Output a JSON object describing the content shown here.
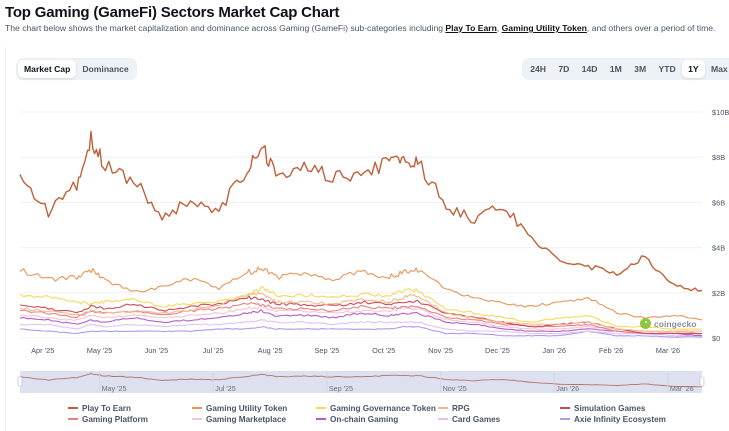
{
  "header": {
    "title": "Top Gaming (GameFi) Sectors Market Cap Chart",
    "desc_pre": "The chart below shows the market capitalization and dominance across Gaming (GameFi) sub-categories including ",
    "link1": "Play To Earn",
    "sep": ", ",
    "link2": "Gaming Utility Token",
    "desc_post": ", and others over a period of time."
  },
  "view_toggle": {
    "options": [
      "Market Cap",
      "Dominance"
    ],
    "active": "Market Cap"
  },
  "range_toggle": {
    "options": [
      "24H",
      "7D",
      "14D",
      "1M",
      "3M",
      "YTD",
      "1Y",
      "Max"
    ],
    "active": "1Y"
  },
  "watermark": "coingecko",
  "chart_data": {
    "type": "line",
    "title": "Top Gaming (GameFi) Sectors Market Cap Chart",
    "xlabel": "",
    "ylabel": "Market Cap (USD)",
    "ylim": [
      0,
      10
    ],
    "yunit": "B",
    "yticks": [
      "$0",
      "$2B",
      "$4B",
      "$6B",
      "$8B",
      "$10B"
    ],
    "ytick_values": [
      0,
      2,
      4,
      6,
      8,
      10
    ],
    "x_range": [
      "2025-03-20",
      "2026-03-20"
    ],
    "xtick_labels": [
      "Apr '25",
      "May '25",
      "Jun '25",
      "Jul '25",
      "Aug '25",
      "Sep '25",
      "Oct '25",
      "Nov '25",
      "Dec '25",
      "Jan '26",
      "Feb '26",
      "Mar '26"
    ],
    "xtick_months": [
      0.4,
      1.4,
      2.4,
      3.4,
      4.4,
      5.4,
      6.4,
      7.4,
      8.4,
      9.4,
      10.4,
      11.4
    ],
    "grid": true,
    "legend_position": "bottom",
    "navigator_ticks": [
      "May '25",
      "Jul '25",
      "Sep '25",
      "Nov '25",
      "Jan '26",
      "Mar '26"
    ],
    "navigator_tick_months": [
      1.4,
      3.4,
      5.4,
      7.4,
      9.4,
      11.4
    ],
    "sample_months": [
      0,
      0.5,
      1,
      1.25,
      1.5,
      2,
      2.5,
      3,
      3.5,
      4,
      4.25,
      4.5,
      5,
      5.5,
      6,
      6.5,
      6.75,
      7,
      7.5,
      8,
      8.5,
      9,
      9.5,
      10,
      10.5,
      11,
      11.5,
      12
    ],
    "series": [
      {
        "name": "Play To Earn",
        "color": "#c0603a",
        "values": [
          7.2,
          5.5,
          6.8,
          8.8,
          7.6,
          7.0,
          5.4,
          6.0,
          5.7,
          7.4,
          8.5,
          7.2,
          7.5,
          7.2,
          7.1,
          7.9,
          7.7,
          7.8,
          5.8,
          5.2,
          5.9,
          4.3,
          3.4,
          3.2,
          2.8,
          3.6,
          2.3,
          2.1
        ]
      },
      {
        "name": "Gaming Utility Token",
        "color": "#e8955a",
        "values": [
          3.0,
          2.6,
          2.7,
          3.0,
          2.6,
          2.0,
          2.3,
          2.6,
          2.2,
          2.9,
          3.1,
          2.7,
          2.8,
          2.6,
          2.9,
          2.7,
          2.9,
          3.0,
          2.1,
          1.8,
          1.5,
          1.4,
          1.6,
          1.8,
          1.1,
          0.9,
          1.0,
          0.8
        ]
      },
      {
        "name": "Gaming Governance Token",
        "color": "#f5d95c",
        "values": [
          1.9,
          1.8,
          1.6,
          1.5,
          1.6,
          1.7,
          1.4,
          1.5,
          1.6,
          1.9,
          2.2,
          1.9,
          1.9,
          1.8,
          1.9,
          1.9,
          2.1,
          2.1,
          1.3,
          1.1,
          0.9,
          0.7,
          0.9,
          1.0,
          0.5,
          0.5,
          0.4,
          0.4
        ]
      },
      {
        "name": "RPG",
        "color": "#f4b98a",
        "values": [
          1.3,
          1.2,
          1.0,
          1.2,
          1.1,
          1.2,
          1.1,
          1.2,
          1.5,
          1.9,
          2.0,
          1.6,
          1.6,
          1.5,
          1.7,
          1.6,
          1.8,
          1.9,
          1.1,
          0.9,
          0.7,
          0.6,
          0.6,
          0.7,
          0.4,
          0.3,
          0.3,
          0.3
        ]
      },
      {
        "name": "Simulation Games",
        "color": "#cc4a57",
        "values": [
          1.5,
          1.3,
          1.1,
          1.4,
          1.3,
          1.5,
          1.2,
          1.4,
          1.5,
          1.8,
          1.7,
          1.5,
          1.5,
          1.4,
          1.6,
          1.5,
          1.6,
          1.6,
          1.1,
          0.9,
          0.7,
          0.5,
          0.6,
          0.7,
          0.4,
          0.2,
          0.2,
          0.2
        ]
      },
      {
        "name": "Gaming Platform",
        "color": "#e88089",
        "values": [
          1.2,
          1.1,
          0.9,
          1.2,
          1.1,
          1.2,
          1.0,
          1.2,
          1.3,
          1.5,
          1.5,
          1.3,
          1.3,
          1.2,
          1.4,
          1.3,
          1.4,
          1.4,
          0.9,
          0.8,
          0.6,
          0.5,
          0.5,
          0.6,
          0.3,
          0.2,
          0.2,
          0.2
        ]
      },
      {
        "name": "Gaming Marketplace",
        "color": "#f5c6d0",
        "values": [
          1.0,
          0.9,
          0.8,
          1.0,
          0.9,
          1.0,
          0.9,
          1.0,
          1.1,
          1.3,
          1.4,
          1.2,
          1.2,
          1.1,
          1.2,
          1.2,
          1.3,
          1.3,
          0.8,
          0.7,
          0.5,
          0.4,
          0.4,
          0.5,
          0.4,
          0.3,
          0.3,
          0.2
        ]
      },
      {
        "name": "On-chain Gaming",
        "color": "#b55fc4",
        "values": [
          0.9,
          0.8,
          0.6,
          0.8,
          0.7,
          0.9,
          0.7,
          0.8,
          0.9,
          1.1,
          1.2,
          1.0,
          1.0,
          0.9,
          1.1,
          1.0,
          1.1,
          1.1,
          0.7,
          0.6,
          0.4,
          0.3,
          0.3,
          0.4,
          0.3,
          0.2,
          0.2,
          0.1
        ]
      },
      {
        "name": "Card Games",
        "color": "#e3c2f0",
        "values": [
          0.6,
          0.6,
          0.4,
          0.6,
          0.5,
          0.6,
          0.5,
          0.6,
          0.6,
          0.7,
          0.8,
          0.7,
          0.7,
          0.6,
          0.7,
          0.7,
          0.7,
          0.7,
          0.4,
          0.3,
          0.3,
          0.2,
          0.2,
          0.3,
          0.2,
          0.2,
          0.1,
          0.1
        ]
      },
      {
        "name": "Axie Infinity Ecosystem",
        "color": "#b09af0",
        "values": [
          0.4,
          0.3,
          0.2,
          0.3,
          0.3,
          0.3,
          0.3,
          0.3,
          0.4,
          0.4,
          0.5,
          0.4,
          0.4,
          0.4,
          0.4,
          0.4,
          0.5,
          0.5,
          0.2,
          0.2,
          0.1,
          0.1,
          0.1,
          0.3,
          0.1,
          0.1,
          0.05,
          0.05
        ]
      }
    ]
  }
}
